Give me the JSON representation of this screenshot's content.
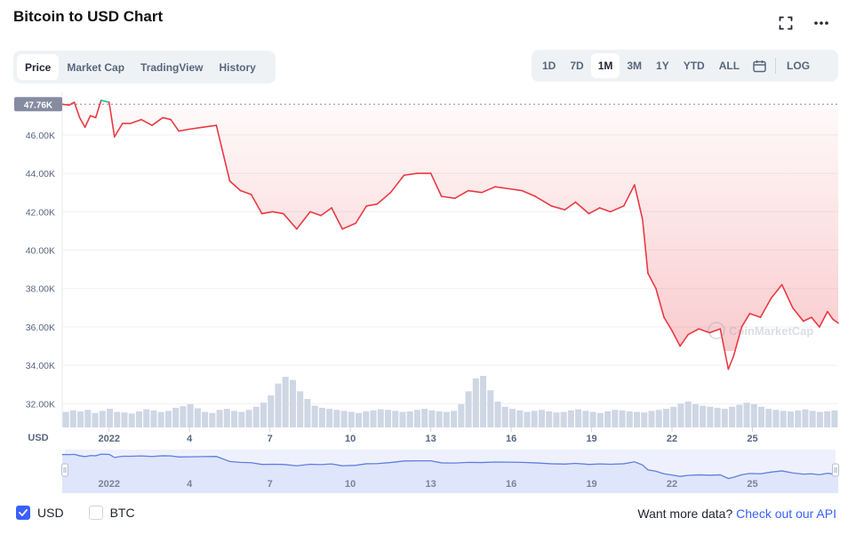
{
  "title": "Bitcoin to USD Chart",
  "tabs": [
    {
      "label": "Price",
      "active": true
    },
    {
      "label": "Market Cap",
      "active": false
    },
    {
      "label": "TradingView",
      "active": false
    },
    {
      "label": "History",
      "active": false
    }
  ],
  "ranges": [
    {
      "label": "1D",
      "active": false
    },
    {
      "label": "7D",
      "active": false
    },
    {
      "label": "1M",
      "active": true
    },
    {
      "label": "3M",
      "active": false
    },
    {
      "label": "1Y",
      "active": false
    },
    {
      "label": "YTD",
      "active": false
    },
    {
      "label": "ALL",
      "active": false
    }
  ],
  "log_label": "LOG",
  "icons": [
    "fullscreen-icon",
    "more-icon",
    "calendar-icon",
    "check-icon"
  ],
  "colors": {
    "down": "#ea3943",
    "up": "#16c784",
    "accent": "#3861fb",
    "nav_line": "#5f7fe0",
    "volume": "#cfd6e4"
  },
  "chart_data": {
    "type": "line",
    "current_price_label": "47.76K",
    "ylabel": "USD",
    "ylim": [
      31000,
      48400
    ],
    "y_ticks": [
      "46.00K",
      "44.00K",
      "42.00K",
      "40.00K",
      "38.00K",
      "36.00K",
      "34.00K",
      "32.00K"
    ],
    "y_tick_values": [
      46000,
      44000,
      42000,
      40000,
      38000,
      36000,
      34000,
      32000
    ],
    "x_ticks": [
      "2022",
      "4",
      "7",
      "10",
      "13",
      "16",
      "19",
      "22",
      "25"
    ],
    "x_tick_values": [
      1,
      4,
      7,
      10,
      13,
      16,
      19,
      22,
      25
    ],
    "xlim": [
      -0.75,
      28.2
    ],
    "grid": true,
    "series": [
      {
        "x": [
          -0.75,
          -0.5,
          -0.3,
          -0.1,
          0.1,
          0.3,
          0.5,
          0.7,
          1.0,
          1.2,
          1.5,
          1.8,
          2.2,
          2.6,
          3.0,
          3.3,
          3.6,
          4.0,
          4.5,
          5.0,
          5.5,
          5.9,
          6.3,
          6.7,
          7.1,
          7.5,
          8.0,
          8.5,
          8.9,
          9.3,
          9.7,
          10.2,
          10.6,
          11.0,
          11.5,
          12.0,
          12.5,
          13.0,
          13.4,
          13.9,
          14.4,
          14.9,
          15.4,
          15.9,
          16.4,
          16.9,
          17.5,
          18.0,
          18.4,
          18.9,
          19.3,
          19.7,
          20.2,
          20.6,
          20.9,
          21.1,
          21.4,
          21.7,
          22.0,
          22.3,
          22.6,
          23.0,
          23.4,
          23.8,
          24.1,
          24.3,
          24.6,
          24.9,
          25.3,
          25.7,
          26.1,
          26.5,
          26.9,
          27.2,
          27.5,
          27.8,
          28.0,
          28.2
        ],
        "y": [
          47600,
          47550,
          47700,
          46900,
          46400,
          47000,
          46900,
          47800,
          47700,
          45900,
          46600,
          46600,
          46800,
          46500,
          46900,
          46800,
          46200,
          46300,
          46400,
          46500,
          43600,
          43100,
          42900,
          41900,
          42000,
          41900,
          41100,
          42000,
          41800,
          42200,
          41100,
          41400,
          42300,
          42400,
          43000,
          43900,
          44000,
          44000,
          42800,
          42700,
          43100,
          43000,
          43300,
          43200,
          43100,
          42800,
          42300,
          42100,
          42500,
          41900,
          42200,
          42000,
          42300,
          43400,
          41600,
          38800,
          38000,
          36500,
          35800,
          35000,
          35600,
          35900,
          35700,
          35900,
          33800,
          34500,
          36000,
          36700,
          36500,
          37500,
          38200,
          37000,
          36300,
          36500,
          36000,
          36800,
          36400,
          36200
        ]
      }
    ],
    "volume": [
      30,
      33,
      31,
      34,
      28,
      32,
      36,
      30,
      29,
      27,
      31,
      35,
      33,
      30,
      32,
      38,
      41,
      45,
      37,
      30,
      28,
      34,
      36,
      32,
      30,
      34,
      40,
      48,
      62,
      85,
      98,
      92,
      70,
      55,
      42,
      38,
      36,
      34,
      32,
      30,
      28,
      31,
      33,
      35,
      34,
      32,
      30,
      31,
      34,
      36,
      33,
      31,
      30,
      32,
      45,
      70,
      95,
      100,
      72,
      50,
      40,
      36,
      33,
      30,
      32,
      34,
      31,
      29,
      30,
      33,
      35,
      32,
      30,
      28,
      31,
      34,
      33,
      31,
      30,
      29,
      32,
      34,
      36,
      40,
      46,
      50,
      45,
      42,
      40,
      38,
      36,
      40,
      44,
      48,
      45,
      40,
      36,
      34,
      32,
      31,
      33,
      35,
      32,
      30,
      31,
      33
    ]
  },
  "legend": [
    {
      "label": "USD",
      "checked": true
    },
    {
      "label": "BTC",
      "checked": false
    }
  ],
  "api_prompt": "Want more data?",
  "api_link": "Check out our API"
}
